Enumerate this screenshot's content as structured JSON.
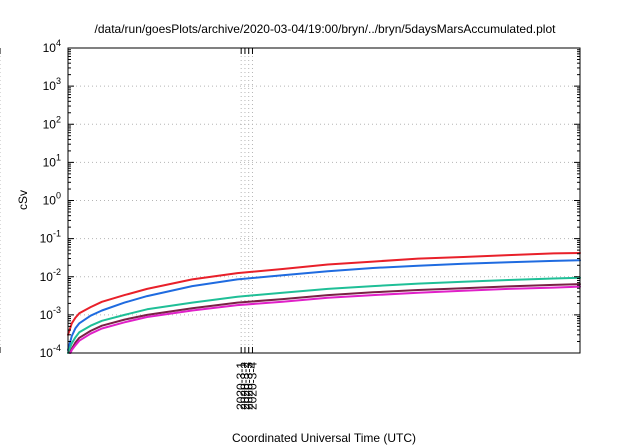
{
  "chart_data": {
    "type": "line",
    "title": "/data/run/goesPlots/archive/2020-03-04/19:00/bryn/../bryn/5daysMarsAccumulated.plot",
    "xlabel": "Coordinated Universal Time (UTC)",
    "ylabel": "cSv",
    "y_scale": "log",
    "ylim": [
      0.0001,
      10000
    ],
    "y_ticks": [
      {
        "value": 0.0001,
        "base": "10",
        "exp": "-4"
      },
      {
        "value": 0.001,
        "base": "10",
        "exp": "-3"
      },
      {
        "value": 0.01,
        "base": "10",
        "exp": "-2"
      },
      {
        "value": 0.1,
        "base": "10",
        "exp": "-1"
      },
      {
        "value": 1,
        "base": "10",
        "exp": "0"
      },
      {
        "value": 10,
        "base": "10",
        "exp": "1"
      },
      {
        "value": 100,
        "base": "10",
        "exp": "2"
      },
      {
        "value": 1000,
        "base": "10",
        "exp": "3"
      },
      {
        "value": 10000,
        "base": "10",
        "exp": "4"
      }
    ],
    "xlim": [
      "2020-02-28T03:00",
      "2020-03-04T19:00"
    ],
    "x_ticks": [
      "2020-2-29",
      "2020-3-1",
      "2020-3-2",
      "2020-3-3",
      "2020-3-4"
    ],
    "grid": true,
    "series": [
      {
        "color": "#e8202a",
        "x": [
          "2020-02-28T03:00",
          "2020-02-28T04:00",
          "2020-02-28T05:00",
          "2020-02-28T06:00",
          "2020-02-28T09:00",
          "2020-02-28T12:00",
          "2020-02-28T18:00",
          "2020-02-29T00:00",
          "2020-02-29T12:00",
          "2020-03-01T00:00",
          "2020-03-01T12:00",
          "2020-03-02T00:00",
          "2020-03-02T12:00",
          "2020-03-03T00:00",
          "2020-03-03T12:00",
          "2020-03-04T00:00",
          "2020-03-04T12:00",
          "2020-03-04T19:00"
        ],
        "values": [
          0.0003,
          0.0006,
          0.00085,
          0.0011,
          0.0016,
          0.0022,
          0.0033,
          0.0048,
          0.0085,
          0.0125,
          0.016,
          0.021,
          0.025,
          0.03,
          0.033,
          0.037,
          0.041,
          0.042
        ]
      },
      {
        "color": "#1f6be0",
        "x": [
          "2020-02-28T03:00",
          "2020-02-28T04:00",
          "2020-02-28T05:00",
          "2020-02-28T06:00",
          "2020-02-28T09:00",
          "2020-02-28T12:00",
          "2020-02-28T18:00",
          "2020-02-29T00:00",
          "2020-02-29T12:00",
          "2020-03-01T00:00",
          "2020-03-01T12:00",
          "2020-03-02T00:00",
          "2020-03-02T12:00",
          "2020-03-03T00:00",
          "2020-03-03T12:00",
          "2020-03-04T00:00",
          "2020-03-04T12:00",
          "2020-03-04T19:00"
        ],
        "values": [
          0.00012,
          0.00028,
          0.00045,
          0.0006,
          0.00095,
          0.0013,
          0.0021,
          0.0031,
          0.0057,
          0.0085,
          0.011,
          0.014,
          0.017,
          0.0195,
          0.022,
          0.024,
          0.026,
          0.027
        ]
      },
      {
        "color": "#1fbf97",
        "x": [
          "2020-02-28T03:00",
          "2020-02-28T04:00",
          "2020-02-28T05:00",
          "2020-02-28T06:00",
          "2020-02-28T09:00",
          "2020-02-28T12:00",
          "2020-02-28T18:00",
          "2020-02-29T00:00",
          "2020-02-29T12:00",
          "2020-03-01T00:00",
          "2020-03-01T12:00",
          "2020-03-02T00:00",
          "2020-03-02T12:00",
          "2020-03-03T00:00",
          "2020-03-03T12:00",
          "2020-03-04T00:00",
          "2020-03-04T12:00",
          "2020-03-04T19:00"
        ],
        "values": [
          0.0001,
          0.00018,
          0.00026,
          0.00035,
          0.00052,
          0.0007,
          0.001,
          0.0014,
          0.0021,
          0.003,
          0.0038,
          0.0048,
          0.0057,
          0.0066,
          0.0074,
          0.0082,
          0.009,
          0.0094
        ]
      },
      {
        "color": "#7a2045",
        "x": [
          "2020-02-28T03:30",
          "2020-02-28T04:00",
          "2020-02-28T05:00",
          "2020-02-28T06:00",
          "2020-02-28T09:00",
          "2020-02-28T12:00",
          "2020-02-28T18:00",
          "2020-02-29T00:00",
          "2020-02-29T12:00",
          "2020-03-01T00:00",
          "2020-03-01T12:00",
          "2020-03-02T00:00",
          "2020-03-02T12:00",
          "2020-03-03T00:00",
          "2020-03-03T12:00",
          "2020-03-04T00:00",
          "2020-03-04T12:00",
          "2020-03-04T19:00"
        ],
        "values": [
          0.0001,
          0.00013,
          0.00019,
          0.00025,
          0.00038,
          0.00052,
          0.00075,
          0.001,
          0.0015,
          0.0021,
          0.0026,
          0.0033,
          0.0039,
          0.0045,
          0.005,
          0.0056,
          0.0061,
          0.0064
        ]
      },
      {
        "color": "#e020c8",
        "x": [
          "2020-02-28T03:40",
          "2020-02-28T04:00",
          "2020-02-28T05:00",
          "2020-02-28T06:00",
          "2020-02-28T09:00",
          "2020-02-28T12:00",
          "2020-02-28T18:00",
          "2020-02-29T00:00",
          "2020-02-29T12:00",
          "2020-03-01T00:00",
          "2020-03-01T12:00",
          "2020-03-02T00:00",
          "2020-03-02T12:00",
          "2020-03-03T00:00",
          "2020-03-03T12:00",
          "2020-03-04T00:00",
          "2020-03-04T12:00",
          "2020-03-04T19:00"
        ],
        "values": [
          0.0001,
          0.00012,
          0.00016,
          0.00021,
          0.00032,
          0.00044,
          0.00064,
          0.00088,
          0.0013,
          0.0018,
          0.0022,
          0.0028,
          0.0033,
          0.0038,
          0.0043,
          0.0048,
          0.0052,
          0.0055
        ]
      }
    ]
  }
}
